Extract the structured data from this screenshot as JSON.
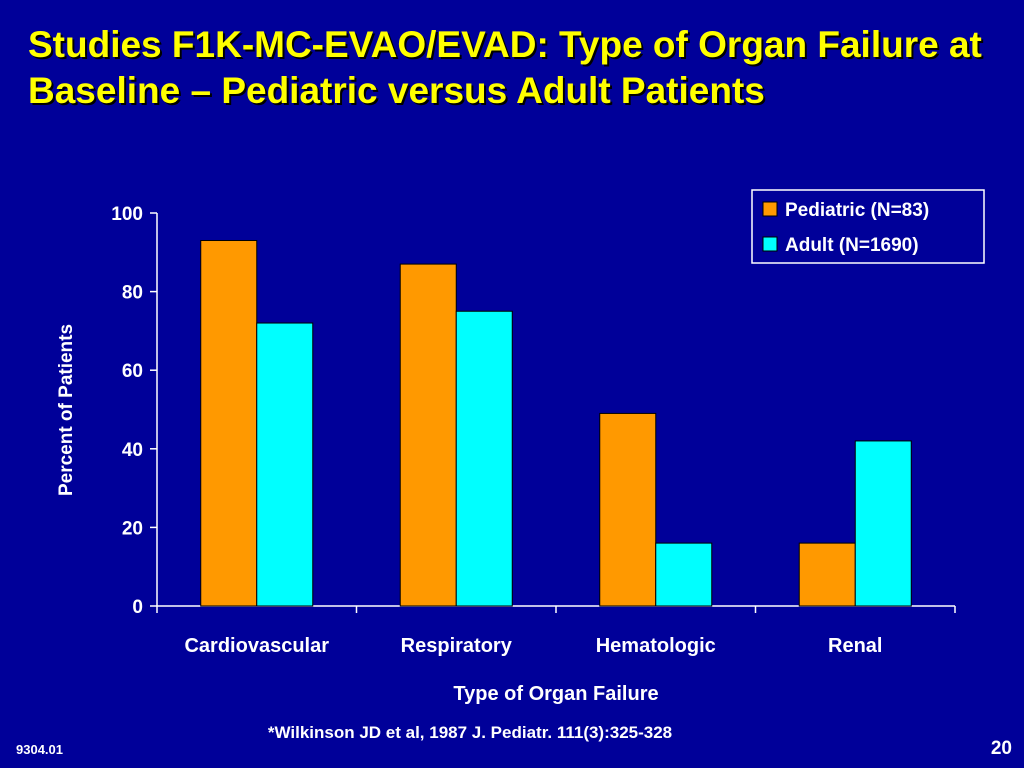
{
  "slide": {
    "title": "Studies F1K-MC-EVAO/EVAD: Type of Organ Failure at Baseline – Pediatric versus Adult Patients",
    "citation": "*Wilkinson JD et al, 1987 J. Pediatr. 111(3):325-328",
    "code": "9304.01",
    "page_number": "20"
  },
  "colors": {
    "background": "#000099",
    "title": "#FFFF00",
    "text": "#FFFFFF",
    "pediatric": "#FF9900",
    "adult": "#00FFFF"
  },
  "chart_data": {
    "type": "bar",
    "categories": [
      "Cardiovascular",
      "Respiratory",
      "Hematologic",
      "Renal"
    ],
    "series": [
      {
        "name": "Pediatric (N=83)",
        "values": [
          93,
          87,
          49,
          16
        ]
      },
      {
        "name": "Adult (N=1690)",
        "values": [
          72,
          75,
          16,
          42
        ]
      }
    ],
    "xlabel": "Type of Organ Failure",
    "ylabel": "Percent of Patients",
    "ylim": [
      0,
      100
    ],
    "yticks": [
      0,
      20,
      40,
      60,
      80,
      100
    ],
    "legend_position": "top-right",
    "grid": false
  }
}
